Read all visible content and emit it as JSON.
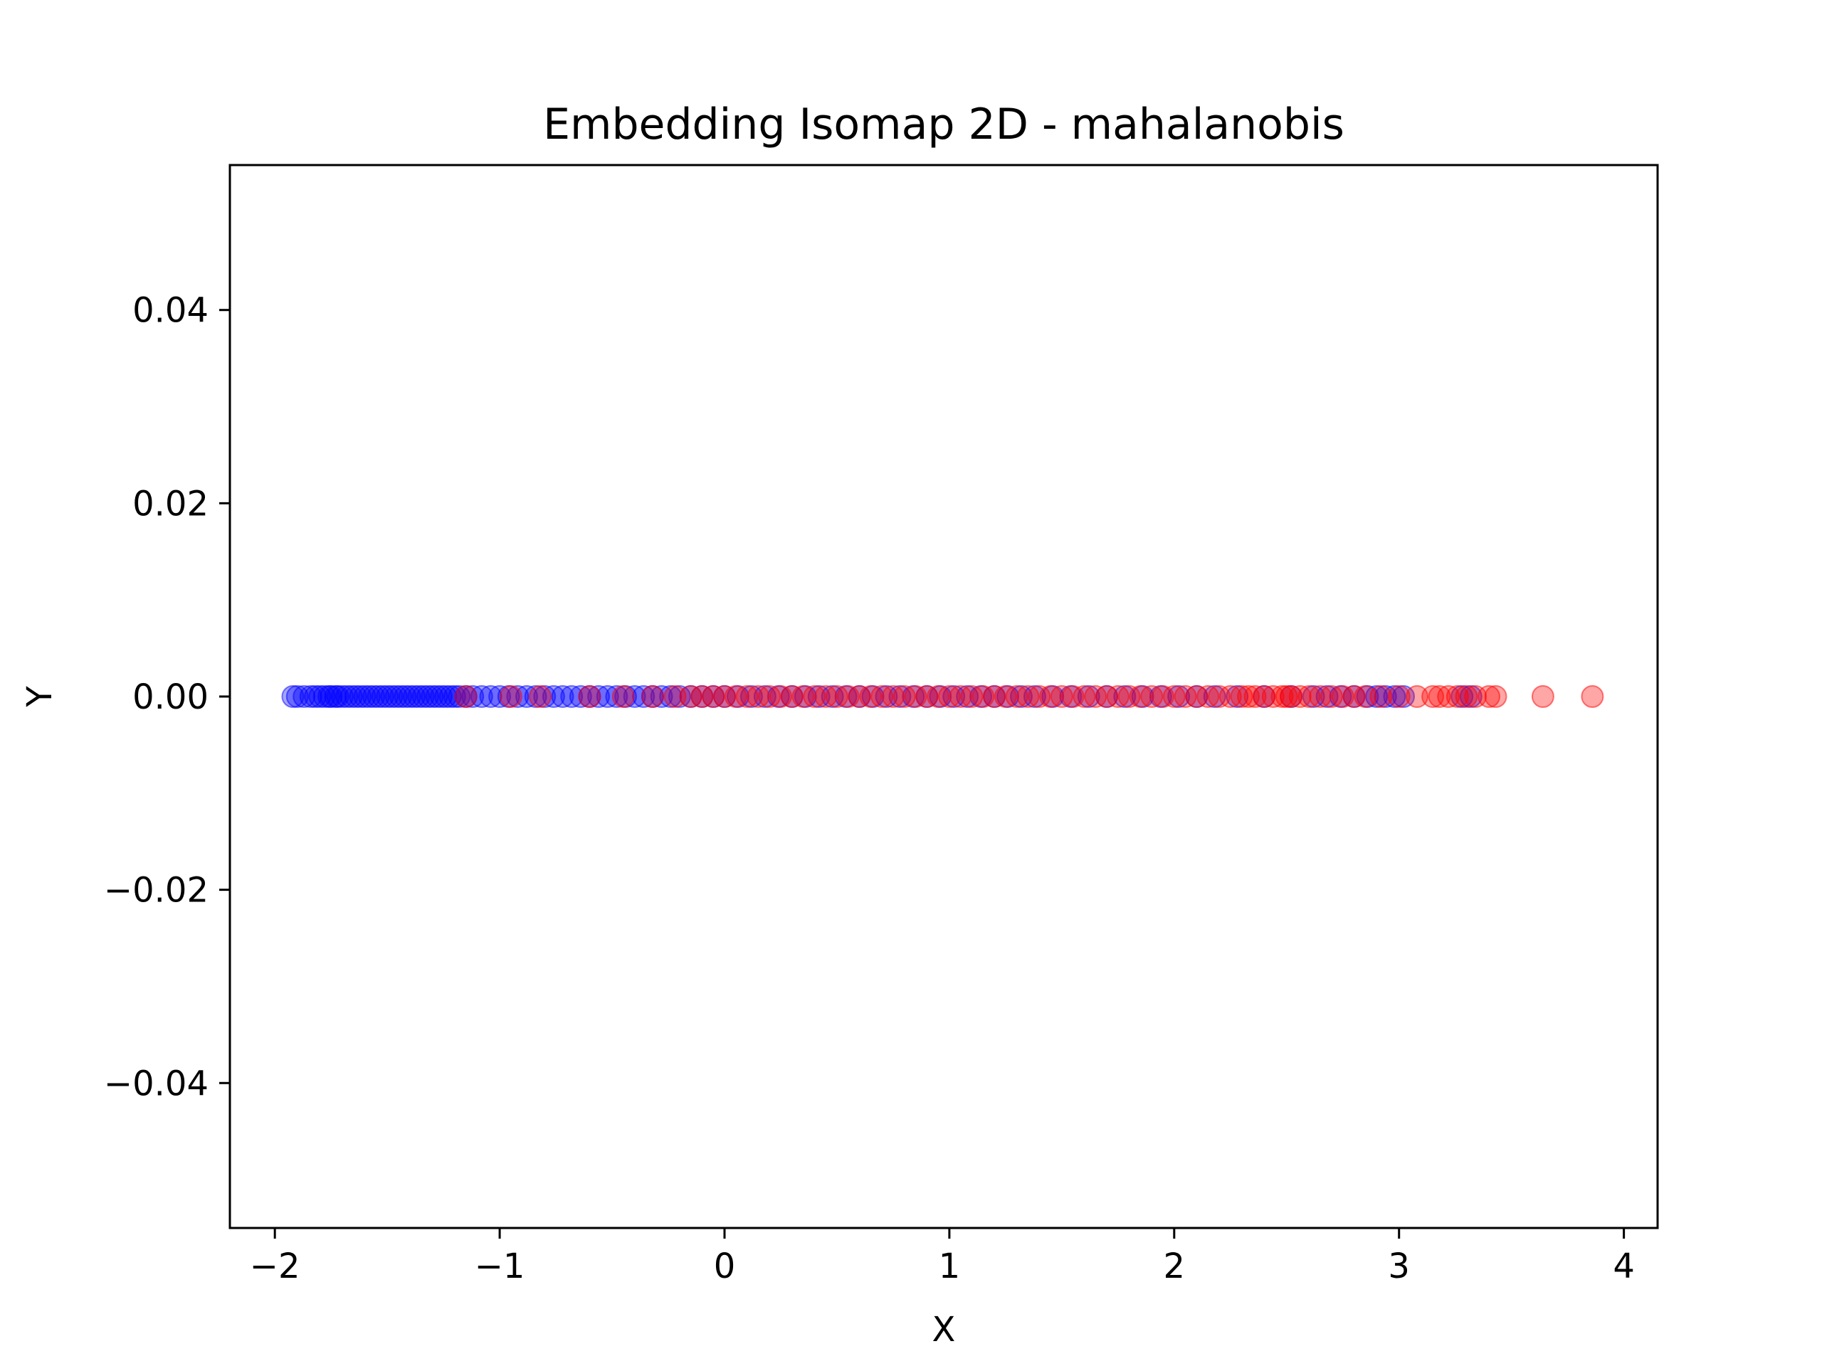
{
  "chart_data": {
    "type": "scatter",
    "title": "Embedding Isomap 2D - mahalanobis",
    "xlabel": "X",
    "ylabel": "Y",
    "xlim": [
      -2.2,
      4.15
    ],
    "ylim": [
      -0.055,
      0.055
    ],
    "x_ticks": [
      -2,
      -1,
      0,
      1,
      2,
      3,
      4
    ],
    "x_tick_labels": [
      "−2",
      "−1",
      "0",
      "1",
      "2",
      "3",
      "4"
    ],
    "y_ticks": [
      -0.04,
      -0.02,
      0.0,
      0.02,
      0.04
    ],
    "y_tick_labels": [
      "−0.04",
      "−0.02",
      "0.00",
      "0.02",
      "0.04"
    ],
    "grid": false,
    "legend": "none",
    "series": [
      {
        "color": "#0000ff",
        "opacity": 0.35,
        "x": [
          -1.92,
          -1.9,
          -1.87,
          -1.84,
          -1.82,
          -1.8,
          -1.78,
          -1.76,
          -1.75,
          -1.73,
          -1.72,
          -1.7,
          -1.68,
          -1.66,
          -1.64,
          -1.62,
          -1.6,
          -1.58,
          -1.56,
          -1.54,
          -1.52,
          -1.5,
          -1.48,
          -1.46,
          -1.44,
          -1.42,
          -1.4,
          -1.38,
          -1.36,
          -1.34,
          -1.32,
          -1.3,
          -1.28,
          -1.26,
          -1.24,
          -1.22,
          -1.2,
          -1.18,
          -1.15,
          -1.12,
          -1.08,
          -1.04,
          -1.0,
          -0.96,
          -0.92,
          -0.88,
          -0.84,
          -0.8,
          -0.76,
          -0.72,
          -0.68,
          -0.64,
          -0.6,
          -0.56,
          -0.52,
          -0.48,
          -0.44,
          -0.4,
          -0.36,
          -0.32,
          -0.28,
          -0.24,
          -0.2,
          -0.15,
          -0.1,
          -0.05,
          0.0,
          0.06,
          0.12,
          0.18,
          0.24,
          0.3,
          0.36,
          0.42,
          0.48,
          0.54,
          0.6,
          0.66,
          0.72,
          0.78,
          0.84,
          0.9,
          0.96,
          1.02,
          1.08,
          1.14,
          1.2,
          1.26,
          1.32,
          1.38,
          1.46,
          1.54,
          1.62,
          1.7,
          1.78,
          1.86,
          1.94,
          2.02,
          2.1,
          2.18,
          2.28,
          2.4,
          2.52,
          2.62,
          2.68,
          2.74,
          2.8,
          2.86,
          2.9,
          2.94,
          2.98,
          3.02,
          3.28,
          3.32
        ],
        "y": [
          0,
          0,
          0,
          0,
          0,
          0,
          0,
          0,
          0,
          0,
          0,
          0,
          0,
          0,
          0,
          0,
          0,
          0,
          0,
          0,
          0,
          0,
          0,
          0,
          0,
          0,
          0,
          0,
          0,
          0,
          0,
          0,
          0,
          0,
          0,
          0,
          0,
          0,
          0,
          0,
          0,
          0,
          0,
          0,
          0,
          0,
          0,
          0,
          0,
          0,
          0,
          0,
          0,
          0,
          0,
          0,
          0,
          0,
          0,
          0,
          0,
          0,
          0,
          0,
          0,
          0,
          0,
          0,
          0,
          0,
          0,
          0,
          0,
          0,
          0,
          0,
          0,
          0,
          0,
          0,
          0,
          0,
          0,
          0,
          0,
          0,
          0,
          0,
          0,
          0,
          0,
          0,
          0,
          0,
          0,
          0,
          0,
          0,
          0,
          0,
          0,
          0,
          0,
          0,
          0,
          0,
          0,
          0,
          0,
          0,
          0,
          0,
          0,
          0
        ]
      },
      {
        "color": "#ff0000",
        "opacity": 0.35,
        "x": [
          -1.15,
          -0.95,
          -0.82,
          -0.6,
          -0.45,
          -0.32,
          -0.22,
          -0.15,
          -0.1,
          -0.05,
          0.0,
          0.05,
          0.1,
          0.15,
          0.2,
          0.25,
          0.3,
          0.35,
          0.4,
          0.45,
          0.5,
          0.55,
          0.6,
          0.65,
          0.7,
          0.75,
          0.8,
          0.85,
          0.9,
          0.95,
          1.0,
          1.05,
          1.1,
          1.15,
          1.2,
          1.25,
          1.3,
          1.35,
          1.4,
          1.45,
          1.5,
          1.55,
          1.6,
          1.65,
          1.7,
          1.75,
          1.8,
          1.85,
          1.9,
          1.95,
          2.0,
          2.05,
          2.1,
          2.15,
          2.2,
          2.25,
          2.3,
          2.33,
          2.36,
          2.4,
          2.44,
          2.48,
          2.5,
          2.52,
          2.56,
          2.6,
          2.65,
          2.7,
          2.75,
          2.8,
          2.85,
          2.92,
          3.0,
          3.08,
          3.15,
          3.18,
          3.22,
          3.26,
          3.3,
          3.34,
          3.4,
          3.43,
          3.64,
          3.86
        ],
        "y": [
          0,
          0,
          0,
          0,
          0,
          0,
          0,
          0,
          0,
          0,
          0,
          0,
          0,
          0,
          0,
          0,
          0,
          0,
          0,
          0,
          0,
          0,
          0,
          0,
          0,
          0,
          0,
          0,
          0,
          0,
          0,
          0,
          0,
          0,
          0,
          0,
          0,
          0,
          0,
          0,
          0,
          0,
          0,
          0,
          0,
          0,
          0,
          0,
          0,
          0,
          0,
          0,
          0,
          0,
          0,
          0,
          0,
          0,
          0,
          0,
          0,
          0,
          0,
          0,
          0,
          0,
          0,
          0,
          0,
          0,
          0,
          0,
          0,
          0,
          0,
          0,
          0,
          0,
          0,
          0,
          0,
          0,
          0,
          0
        ]
      }
    ]
  }
}
